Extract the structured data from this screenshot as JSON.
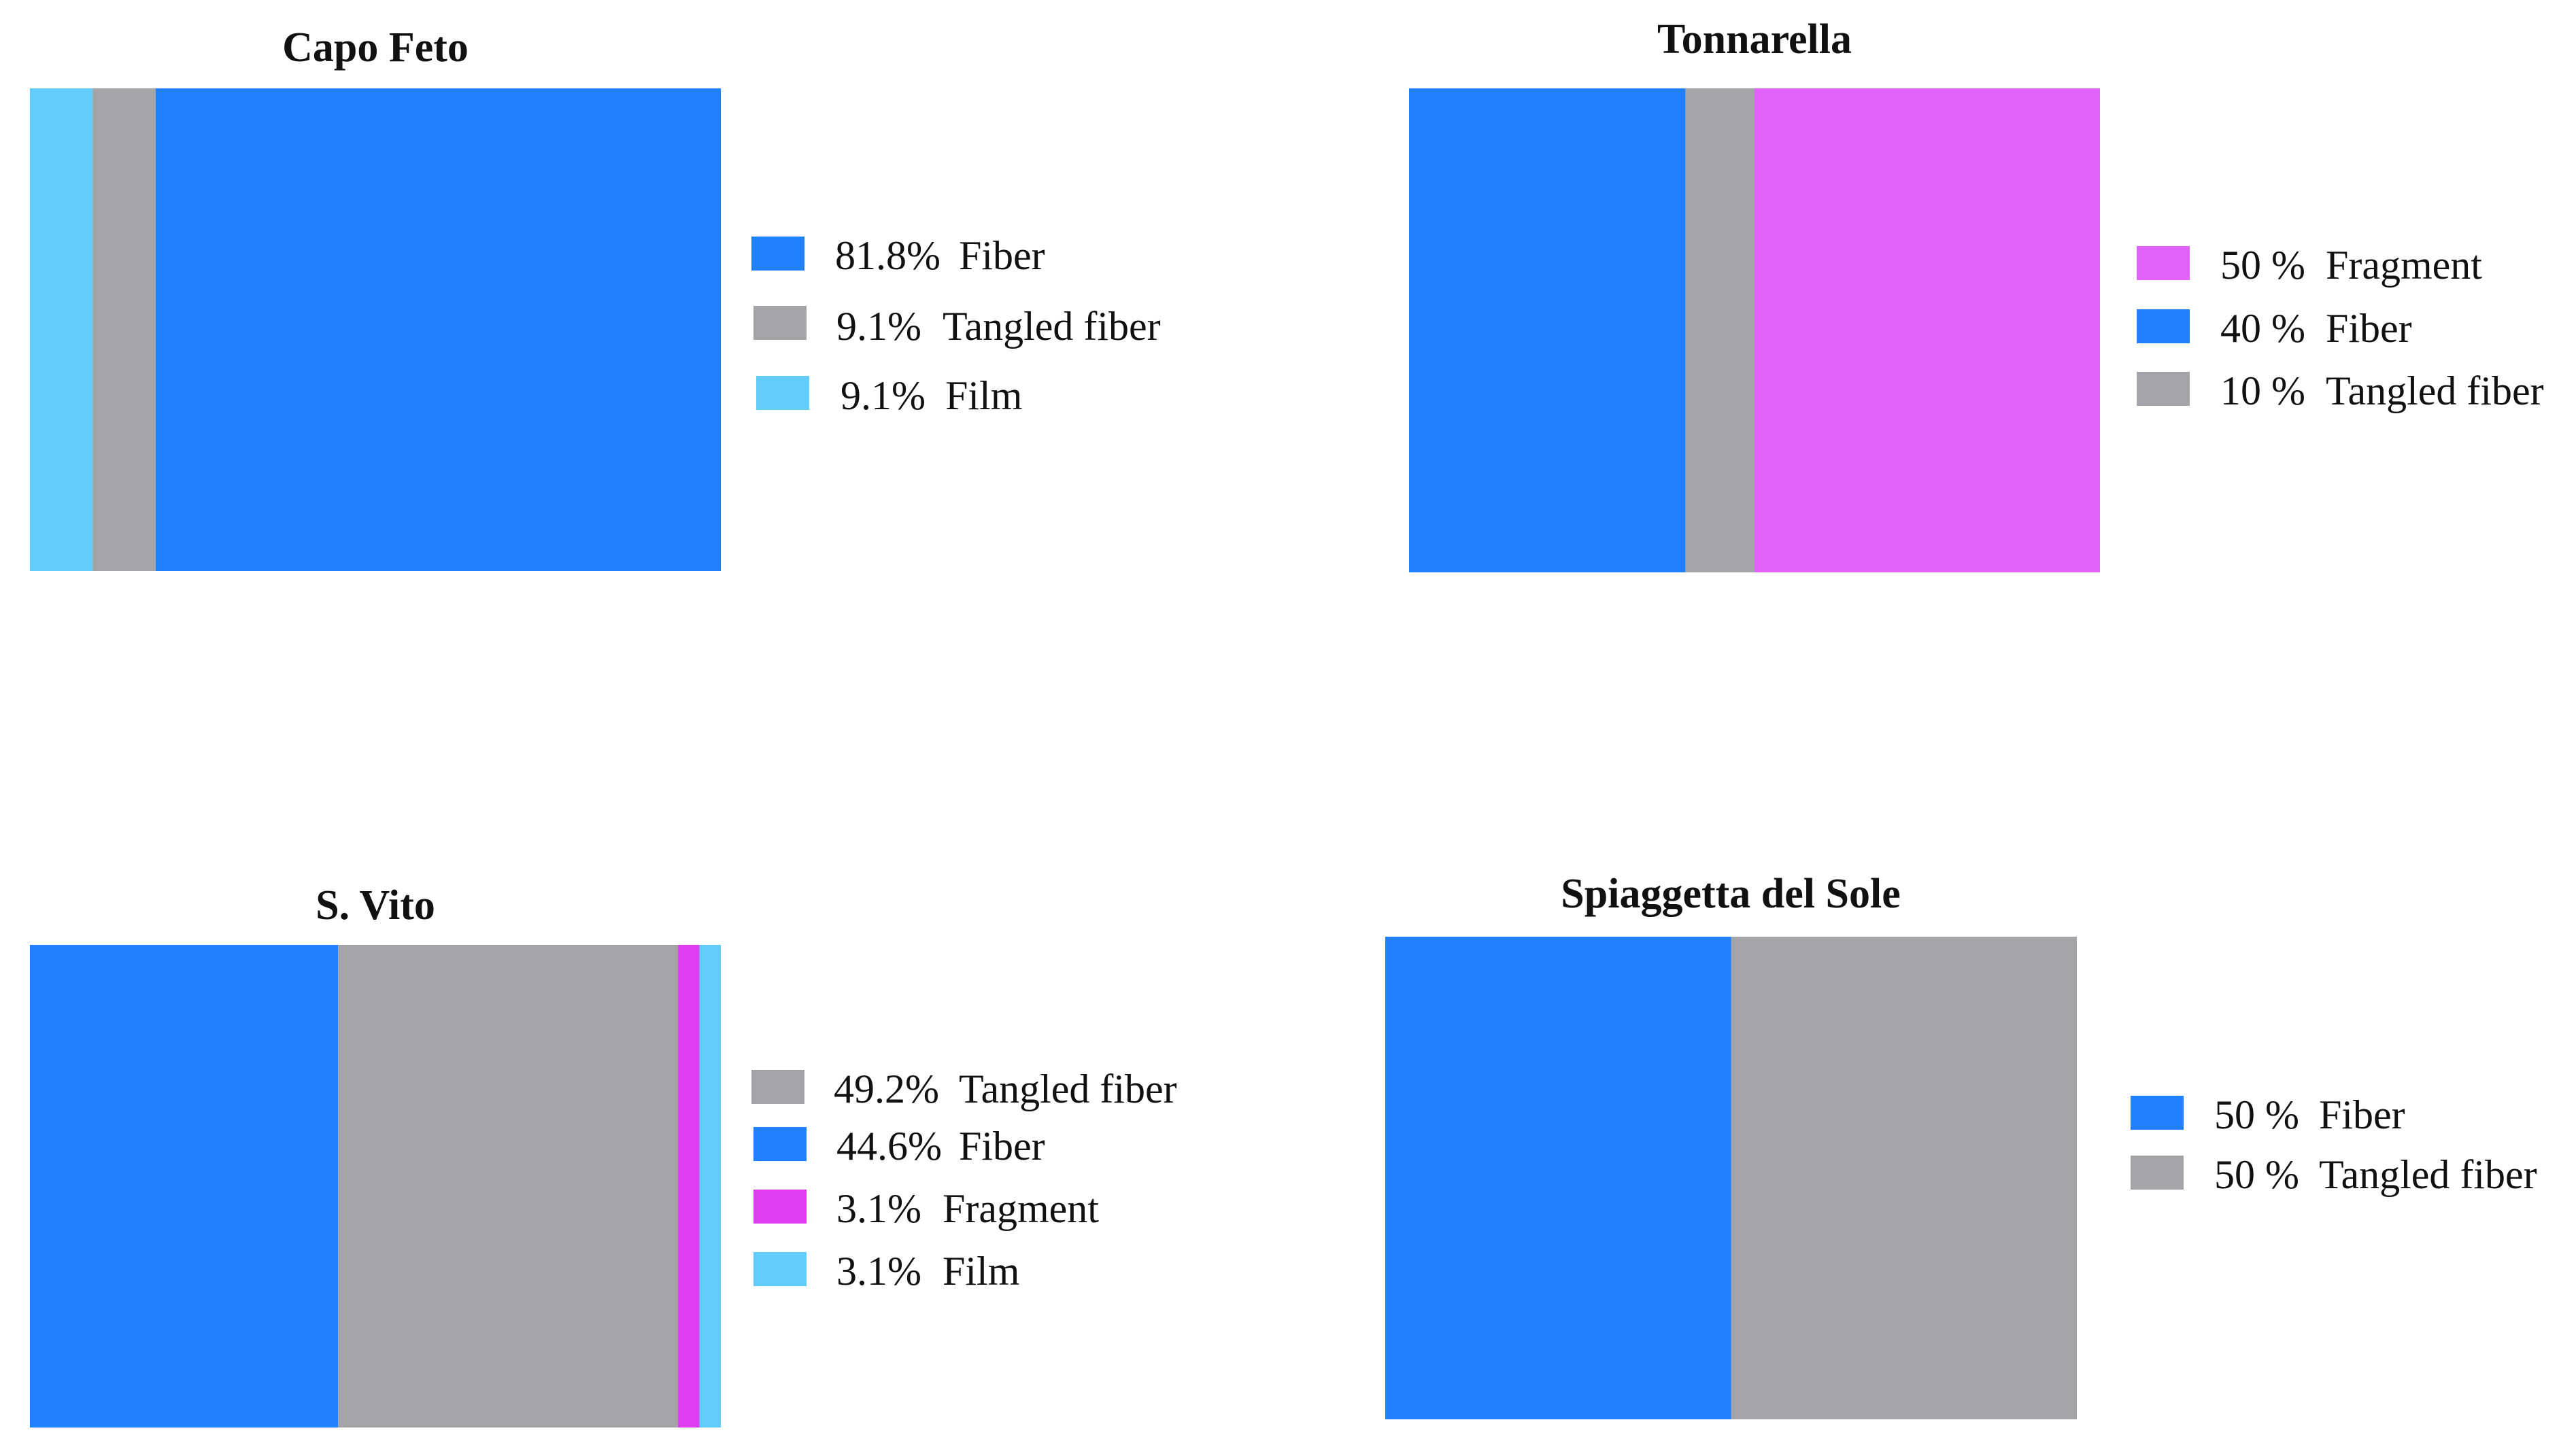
{
  "chart_data": [
    {
      "type": "bar",
      "orientation": "horizontal-stacked",
      "title": "Capo Feto",
      "bar_order": [
        "Film",
        "Tangled fiber",
        "Fiber"
      ],
      "series": [
        {
          "name": "Fiber",
          "value": 81.8,
          "label": "81.8%",
          "color": "#2180FB"
        },
        {
          "name": "Tangled fiber",
          "value": 9.1,
          "label": "9.1%",
          "color": "#A4A4A8"
        },
        {
          "name": "Film",
          "value": 9.1,
          "label": "9.1%",
          "color": "#62CCFB"
        }
      ]
    },
    {
      "type": "bar",
      "orientation": "horizontal-stacked",
      "title": "Tonnarella",
      "bar_order": [
        "Fiber",
        "Tangled fiber",
        "Fragment"
      ],
      "series": [
        {
          "name": "Fragment",
          "value": 50,
          "label": "50 %",
          "color": "#E163FB"
        },
        {
          "name": "Fiber",
          "value": 40,
          "label": "40 %",
          "color": "#2180FB"
        },
        {
          "name": "Tangled fiber",
          "value": 10,
          "label": "10 %",
          "color": "#A4A4A8"
        }
      ]
    },
    {
      "type": "bar",
      "orientation": "horizontal-stacked",
      "title": "S. Vito",
      "bar_order": [
        "Fiber",
        "Tangled fiber",
        "Fragment",
        "Film"
      ],
      "series": [
        {
          "name": "Tangled fiber",
          "value": 49.2,
          "label": "49.2%",
          "color": "#A4A4A8"
        },
        {
          "name": "Fiber",
          "value": 44.6,
          "label": "44.6%",
          "color": "#2180FB"
        },
        {
          "name": "Fragment",
          "value": 3.1,
          "label": "3.1%",
          "color": "#DD3FF0"
        },
        {
          "name": "Film",
          "value": 3.1,
          "label": "3.1%",
          "color": "#62CCFB"
        }
      ]
    },
    {
      "type": "bar",
      "orientation": "horizontal-stacked",
      "title": "Spiaggetta del Sole",
      "bar_order": [
        "Fiber",
        "Tangled fiber"
      ],
      "series": [
        {
          "name": "Fiber",
          "value": 50,
          "label": "50 %",
          "color": "#2180FB"
        },
        {
          "name": "Tangled fiber",
          "value": 50,
          "label": "50 %",
          "color": "#A4A4A8"
        }
      ]
    }
  ]
}
